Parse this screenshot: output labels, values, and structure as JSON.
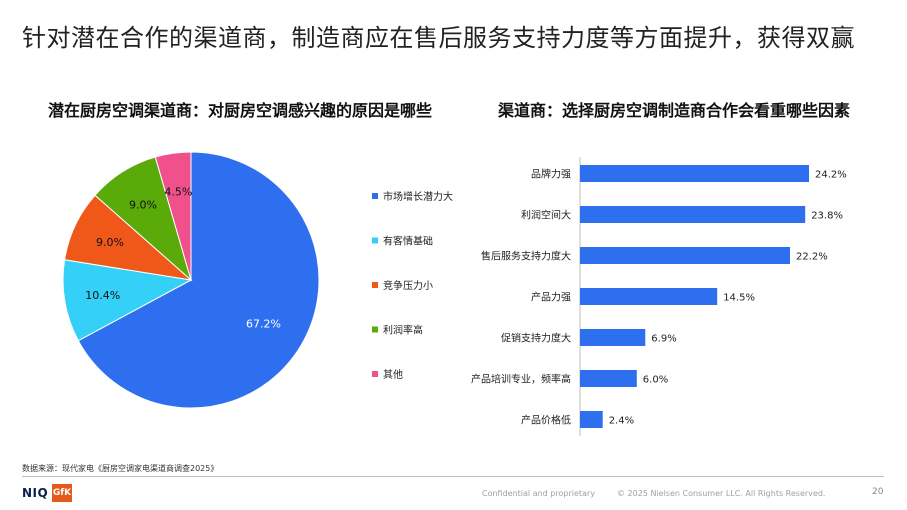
{
  "header": {
    "title": "针对潜在合作的渠道商，制造商应在售后服务支持力度等方面提升，获得双赢"
  },
  "chart_data": [
    {
      "type": "pie",
      "title": "潜在厨房空调渠道商：对厨房空调感兴趣的原因是哪些",
      "categories": [
        "市场增长潜力大",
        "有客情基础",
        "竞争压力小",
        "利润率高",
        "其他"
      ],
      "values": [
        67.2,
        10.4,
        9.0,
        9.0,
        4.5
      ],
      "labels": [
        "67.2%",
        "10.4%",
        "9.0%",
        "9.0%",
        "4.5%"
      ],
      "colors": [
        "#2e6ff0",
        "#34d0f8",
        "#f0581a",
        "#5aaa0a",
        "#f0508c"
      ],
      "legend": "right"
    },
    {
      "type": "bar",
      "orientation": "horizontal",
      "title": "渠道商：选择厨房空调制造商合作会看重哪些因素",
      "categories": [
        "品牌力强",
        "利润空间大",
        "售后服务支持力度大",
        "产品力强",
        "促销支持力度大",
        "产品培训专业，频率高",
        "产品价格低"
      ],
      "values": [
        24.2,
        23.8,
        22.2,
        14.5,
        6.9,
        6.0,
        2.4
      ],
      "labels": [
        "24.2%",
        "23.8%",
        "22.2%",
        "14.5%",
        "6.9%",
        "6.0%",
        "2.4%"
      ],
      "color": "#2e6ff0",
      "xlim": [
        0,
        26
      ]
    }
  ],
  "footer": {
    "source": "数据来源：现代家电《厨房空调家电渠道商调查2025》",
    "logo_niq": "NIQ",
    "logo_gfk": "GfK",
    "confidential": "Confidential and proprietary",
    "copyright": "© 2025 Nielsen Consumer LLC. All Rights Reserved.",
    "page": "20"
  }
}
